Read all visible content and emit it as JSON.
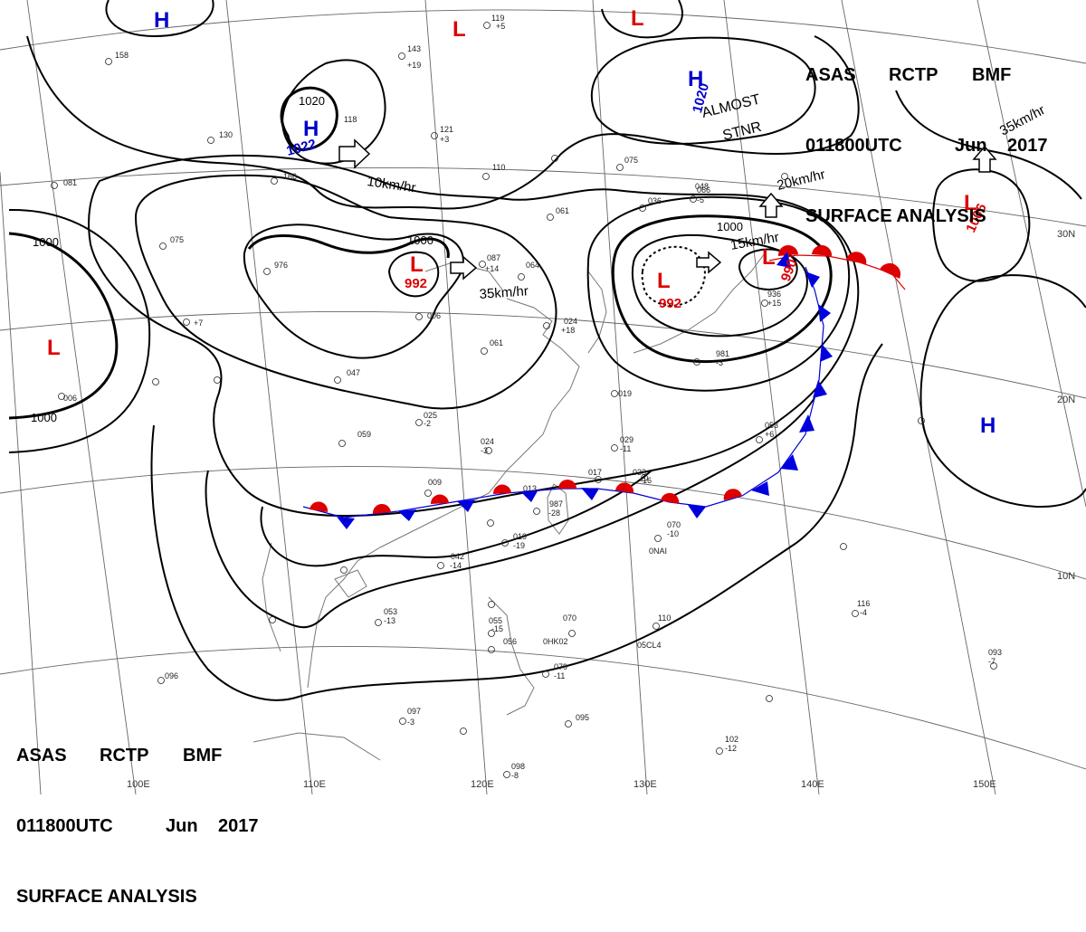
{
  "header_top": {
    "line1": [
      "ASAS",
      "RCTP",
      "BMF"
    ],
    "line2": [
      "011800UTC",
      "Jun",
      "2017"
    ],
    "line3": "SURFACE ANALYSIS"
  },
  "header_bottom": {
    "line1": [
      "ASAS",
      "RCTP",
      "BMF"
    ],
    "line2": [
      "011800UTC",
      "Jun",
      "2017"
    ],
    "line3": "SURFACE ANALYSIS"
  },
  "pressure_centers": [
    {
      "type": "H",
      "value": "",
      "color": "#0000cc"
    },
    {
      "type": "H",
      "value": "1022",
      "color": "#0000cc"
    },
    {
      "type": "H",
      "value": "1020",
      "color": "#0000cc"
    },
    {
      "type": "H",
      "value": "",
      "color": "#0000cc"
    },
    {
      "type": "L",
      "value": "",
      "color": "#dd0000"
    },
    {
      "type": "L",
      "value": "992",
      "color": "#dd0000"
    },
    {
      "type": "L",
      "value": "992",
      "color": "#dd0000"
    },
    {
      "type": "L",
      "value": "990",
      "color": "#dd0000"
    },
    {
      "type": "L",
      "value": "1006",
      "color": "#dd0000"
    },
    {
      "type": "L",
      "value": "",
      "color": "#dd0000"
    },
    {
      "type": "L",
      "value": "",
      "color": "#dd0000"
    }
  ],
  "isobar_labels": [
    "1020",
    "1000",
    "1000",
    "1000",
    "1000"
  ],
  "motion_labels": [
    "10km/hr",
    "35km/hr",
    "15km/hr",
    "20km/hr",
    "35km/hr"
  ],
  "annotations": {
    "almost": "ALMOST",
    "stnr": "STNR"
  },
  "grid_labels": {
    "lat": [
      "30N",
      "20N",
      "10N"
    ],
    "lon": [
      "100E",
      "110E",
      "120E",
      "130E",
      "140E",
      "150E"
    ]
  },
  "stations": [
    "119",
    "+5",
    "143",
    "+19",
    "121",
    "+3",
    "110",
    "075",
    "061",
    "064",
    "087",
    "+14",
    "024",
    "+18",
    "061",
    "047",
    "025",
    "-2",
    "024",
    "-3",
    "059",
    "009",
    "013",
    "987",
    "-28",
    "019",
    "-19",
    "042",
    "-14",
    "053",
    "-13",
    "055",
    "-15",
    "056",
    "070",
    "110",
    "079",
    "-11",
    "097",
    "-3",
    "096",
    "095",
    "098",
    "-8",
    "102",
    "-12",
    "116",
    "-4",
    "093",
    "-7",
    "070",
    "-10",
    "053",
    "+6",
    "029",
    "-11",
    "033",
    "-16",
    "017",
    "019",
    "936",
    "+15",
    "981",
    "-3",
    "066",
    "036",
    "048",
    "-5",
    "166",
    "006",
    "158",
    "130",
    "081",
    "075",
    "976",
    "118",
    "006",
    "+7"
  ],
  "station_ids": [
    "0HK02",
    "05CL4",
    "0NAI"
  ],
  "colors": {
    "warm_front": "#dd0000",
    "cold_front": "#0000dd",
    "isobar": "#000000",
    "grid": "#555555",
    "coast": "#777777",
    "high": "#0000cc",
    "low": "#dd0000"
  }
}
